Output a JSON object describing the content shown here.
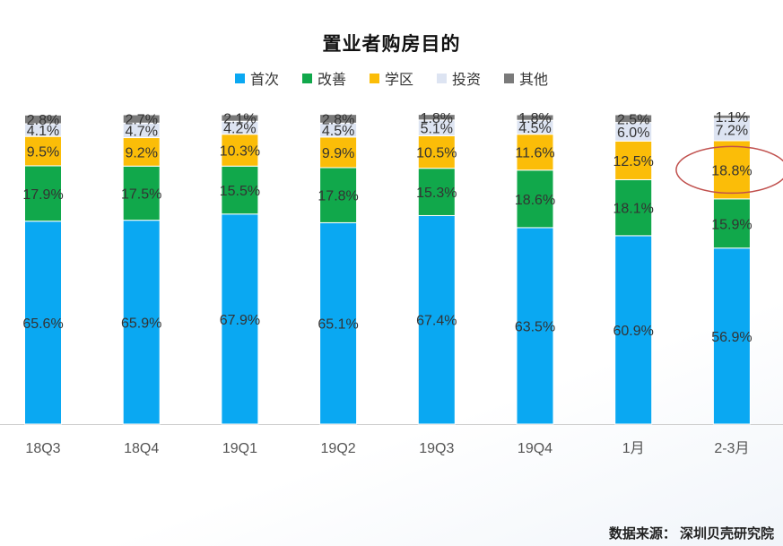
{
  "chart_data": {
    "type": "bar",
    "stacked": true,
    "title": "置业者购房目的",
    "categories": [
      "18Q3",
      "18Q4",
      "19Q1",
      "19Q2",
      "19Q3",
      "19Q4",
      "1月",
      "2-3月"
    ],
    "series": [
      {
        "name": "首次",
        "color": "#0aa8f2",
        "values": [
          65.6,
          65.9,
          67.9,
          65.1,
          67.4,
          63.5,
          60.9,
          56.9
        ],
        "labels": [
          "65.6%",
          "65.9%",
          "67.9%",
          "65.1%",
          "67.4%",
          "63.5%",
          "60.9%",
          "56.9%"
        ]
      },
      {
        "name": "改善",
        "color": "#11a84b",
        "values": [
          17.9,
          17.5,
          15.5,
          17.8,
          15.3,
          18.6,
          18.1,
          15.9
        ],
        "labels": [
          "17.9%",
          "17.5%",
          "15.5%",
          "17.8%",
          "15.3%",
          "18.6%",
          "18.1%",
          "15.9%"
        ]
      },
      {
        "name": "学区",
        "color": "#fbbd08",
        "values": [
          9.5,
          9.2,
          10.3,
          9.9,
          10.5,
          11.6,
          12.5,
          18.8
        ],
        "labels": [
          "9.5%",
          "9.2%",
          "10.3%",
          "9.9%",
          "10.5%",
          "11.6%",
          "12.5%",
          "18.8%"
        ]
      },
      {
        "name": "投资",
        "color": "#dde4f2",
        "values": [
          4.1,
          4.7,
          4.2,
          4.5,
          5.1,
          4.5,
          6.0,
          7.2
        ],
        "labels": [
          "4.1%",
          "4.7%",
          "4.2%",
          "4.5%",
          "5.1%",
          "4.5%",
          "6.0%",
          "7.2%"
        ]
      },
      {
        "name": "其他",
        "color": "#7a7a7a",
        "values": [
          2.8,
          2.7,
          2.1,
          2.8,
          1.8,
          1.8,
          2.5,
          1.1
        ],
        "labels": [
          "2.8%",
          "2.7%",
          "2.1%",
          "2.8%",
          "1.8%",
          "1.8%",
          "2.5%",
          "1.1%"
        ]
      }
    ],
    "ylim": [
      0,
      100
    ],
    "grid": false,
    "legend_position": "top",
    "highlight": {
      "category_index": 7,
      "series_index": 2,
      "shape": "ellipse",
      "color": "#c0504d"
    },
    "axis_color": "#d0d0d0"
  },
  "source": "数据来源： 深圳贝壳研究院"
}
